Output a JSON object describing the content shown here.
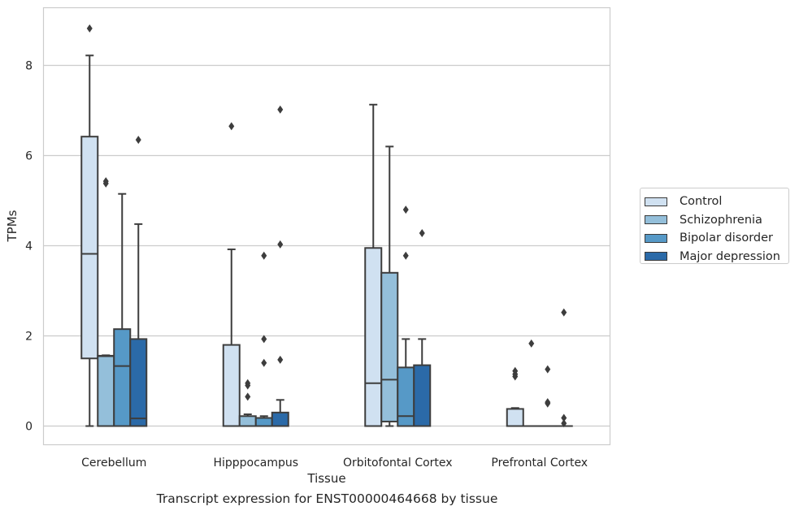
{
  "chart_data": {
    "type": "box",
    "xlabel": "Tissue",
    "ylabel": "TPMs",
    "caption": "Transcript expression for ENST00000464668 by tissue",
    "categories": [
      "Cerebellum",
      "Hipppocampus",
      "Orbitofontal Cortex",
      "Prefrontal Cortex"
    ],
    "yticks": [
      0,
      2,
      4,
      6,
      8
    ],
    "ylim": [
      -0.43,
      9.27
    ],
    "grid": "horizontal",
    "legend_position": "right",
    "series": [
      {
        "name": "Control",
        "color": "#d0e1f1",
        "boxes": [
          {
            "whisker_low": 0,
            "q1": 1.5,
            "median": 3.82,
            "q3": 6.42,
            "whisker_high": 8.22,
            "outliers": [
              8.82
            ]
          },
          {
            "whisker_low": 0,
            "q1": 0,
            "median": 0,
            "q3": 1.8,
            "whisker_high": 3.92,
            "outliers": [
              6.65
            ]
          },
          {
            "whisker_low": 0,
            "q1": 0,
            "median": 0.95,
            "q3": 3.95,
            "whisker_high": 7.13,
            "outliers": []
          },
          {
            "whisker_low": 0,
            "q1": 0,
            "median": 0,
            "q3": 0.38,
            "whisker_high": 0.4,
            "outliers": [
              1.1,
              1.15,
              1.22
            ]
          }
        ]
      },
      {
        "name": "Schizophrenia",
        "color": "#94bfda",
        "boxes": [
          {
            "whisker_low": 0,
            "q1": 0,
            "median": 1.55,
            "q3": 1.56,
            "whisker_high": 1.57,
            "outliers": [
              5.38,
              5.43
            ]
          },
          {
            "whisker_low": 0,
            "q1": 0,
            "median": 0,
            "q3": 0.22,
            "whisker_high": 0.26,
            "outliers": [
              0.65,
              0.9,
              0.95
            ]
          },
          {
            "whisker_low": 0,
            "q1": 0.1,
            "median": 1.03,
            "q3": 3.4,
            "whisker_high": 6.2,
            "outliers": []
          },
          {
            "whisker_low": 0,
            "q1": 0,
            "median": 0,
            "q3": 0,
            "whisker_high": 0,
            "outliers": [
              1.83
            ]
          }
        ]
      },
      {
        "name": "Bipolar disorder",
        "color": "#5699c7",
        "boxes": [
          {
            "whisker_low": 0,
            "q1": 0,
            "median": 1.33,
            "q3": 2.15,
            "whisker_high": 5.15,
            "outliers": []
          },
          {
            "whisker_low": 0,
            "q1": 0,
            "median": 0,
            "q3": 0.18,
            "whisker_high": 0.22,
            "outliers": [
              1.4,
              1.93,
              3.78
            ]
          },
          {
            "whisker_low": 0,
            "q1": 0,
            "median": 0.22,
            "q3": 1.3,
            "whisker_high": 1.93,
            "outliers": [
              3.78,
              4.8
            ]
          },
          {
            "whisker_low": 0,
            "q1": 0,
            "median": 0,
            "q3": 0,
            "whisker_high": 0,
            "outliers": [
              0.5,
              0.53,
              1.26
            ]
          }
        ]
      },
      {
        "name": "Major depression",
        "color": "#2b6aa8",
        "boxes": [
          {
            "whisker_low": 0,
            "q1": 0,
            "median": 0.17,
            "q3": 1.93,
            "whisker_high": 4.48,
            "outliers": [
              6.35
            ]
          },
          {
            "whisker_low": 0,
            "q1": 0,
            "median": 0,
            "q3": 0.3,
            "whisker_high": 0.58,
            "outliers": [
              1.47,
              4.03,
              7.02
            ]
          },
          {
            "whisker_low": 0,
            "q1": 0,
            "median": 0,
            "q3": 1.35,
            "whisker_high": 1.93,
            "outliers": [
              4.28
            ]
          },
          {
            "whisker_low": 0,
            "q1": 0,
            "median": 0,
            "q3": 0,
            "whisker_high": 0,
            "outliers": [
              0.06,
              0.18,
              2.52
            ]
          }
        ]
      }
    ]
  }
}
